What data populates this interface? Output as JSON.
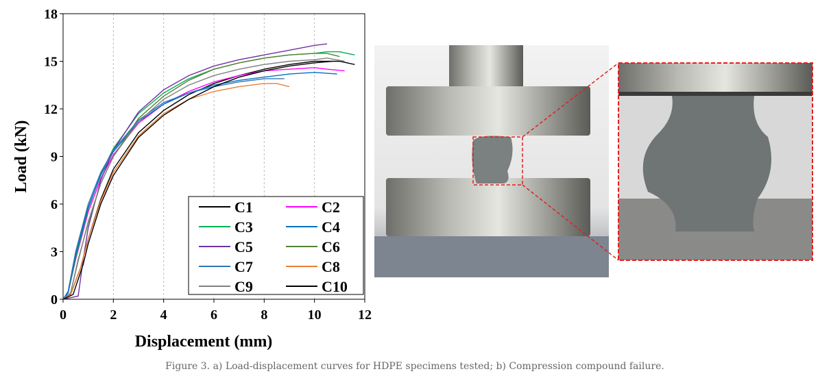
{
  "chart_data": {
    "type": "line",
    "xlabel": "Displacement (mm)",
    "ylabel": "Load (kN)",
    "xlim": [
      0,
      12
    ],
    "xticks": [
      0,
      2,
      4,
      6,
      8,
      10,
      12
    ],
    "ylim": [
      0,
      18
    ],
    "yticks": [
      0,
      3,
      6,
      9,
      12,
      15,
      18
    ],
    "grid": true,
    "legend": "lower right",
    "series": [
      {
        "name": "C1",
        "color": "#000000",
        "x": [
          0,
          0.3,
          0.7,
          1,
          1.5,
          2,
          3,
          4,
          5,
          6,
          7,
          8,
          9,
          10,
          11,
          11.6
        ],
        "values": [
          0,
          0.3,
          2,
          3.8,
          6.3,
          8.2,
          10.5,
          11.9,
          12.9,
          13.6,
          14.1,
          14.5,
          14.8,
          15.0,
          15.0,
          14.8
        ]
      },
      {
        "name": "C2",
        "color": "#ff00ff",
        "x": [
          0,
          0.2,
          0.5,
          1,
          1.5,
          2,
          3,
          4,
          5,
          6,
          7,
          8,
          9,
          10,
          10.5,
          11.2
        ],
        "values": [
          0,
          0.4,
          2.5,
          5.5,
          7.6,
          9.1,
          11.1,
          12.3,
          13.1,
          13.7,
          14.1,
          14.4,
          14.5,
          14.6,
          14.5,
          14.4
        ]
      },
      {
        "name": "C3",
        "color": "#00b050",
        "x": [
          0,
          0.2,
          0.5,
          1,
          1.5,
          2,
          3,
          4,
          5,
          6,
          7,
          8,
          9,
          10,
          10.5,
          11,
          11.6
        ],
        "values": [
          0,
          0.4,
          2.6,
          5.7,
          7.9,
          9.5,
          11.7,
          13.0,
          13.9,
          14.5,
          14.9,
          15.2,
          15.4,
          15.5,
          15.6,
          15.6,
          15.4
        ]
      },
      {
        "name": "C4",
        "color": "#0070c0",
        "x": [
          0,
          0.2,
          0.5,
          1,
          1.5,
          2,
          3,
          4,
          5,
          6,
          7,
          8,
          9,
          10,
          10.9
        ],
        "values": [
          0,
          0.4,
          2.8,
          5.8,
          7.8,
          9.3,
          11.2,
          12.3,
          13.0,
          13.5,
          13.8,
          14.0,
          14.2,
          14.3,
          14.2
        ]
      },
      {
        "name": "C5",
        "color": "#7030a0",
        "x": [
          0,
          0.6,
          0.8,
          1,
          1.5,
          2,
          3,
          4,
          5,
          6,
          7,
          8,
          9,
          10,
          10.5
        ],
        "values": [
          0,
          0.2,
          2.5,
          4.5,
          7.5,
          9.4,
          11.8,
          13.2,
          14.1,
          14.7,
          15.1,
          15.4,
          15.7,
          16.0,
          16.1
        ]
      },
      {
        "name": "C6",
        "color": "#548235",
        "x": [
          0,
          0.3,
          0.6,
          1,
          1.5,
          2,
          3,
          4,
          5,
          6,
          7,
          8,
          9,
          10,
          10.5,
          11
        ],
        "values": [
          0,
          0.4,
          2.5,
          4.8,
          7.3,
          9.0,
          11.4,
          12.8,
          13.8,
          14.5,
          14.9,
          15.2,
          15.4,
          15.5,
          15.5,
          15.3
        ]
      },
      {
        "name": "C7",
        "color": "#2e75b6",
        "x": [
          0,
          0.2,
          0.5,
          1,
          1.5,
          2,
          3,
          4,
          5,
          6,
          7,
          8,
          8.8
        ],
        "values": [
          0,
          0.5,
          3,
          6,
          8,
          9.4,
          11.3,
          12.4,
          13.0,
          13.4,
          13.7,
          13.9,
          13.9
        ]
      },
      {
        "name": "C8",
        "color": "#ed7d31",
        "x": [
          0,
          0.3,
          0.7,
          1,
          1.5,
          2,
          3,
          4,
          5,
          6,
          7,
          8,
          8.5,
          9
        ],
        "values": [
          0,
          0.3,
          2,
          3.8,
          6.2,
          8.0,
          10.3,
          11.7,
          12.6,
          13.1,
          13.4,
          13.6,
          13.6,
          13.4
        ]
      },
      {
        "name": "C9",
        "color": "#808080",
        "x": [
          0,
          0.3,
          0.6,
          1,
          1.5,
          2,
          3,
          4,
          5,
          6,
          7,
          8,
          9,
          10,
          10.5,
          11.2
        ],
        "values": [
          0,
          0.4,
          2.4,
          4.9,
          7.3,
          9.0,
          11.2,
          12.6,
          13.5,
          14.1,
          14.5,
          14.8,
          15.0,
          15.1,
          15.2,
          15.0
        ]
      },
      {
        "name": "C10",
        "color": "#000000",
        "x": [
          0,
          0.4,
          0.8,
          1,
          1.5,
          2,
          3,
          4,
          5,
          6,
          7,
          8,
          9,
          10,
          10.7
        ],
        "values": [
          0,
          0.3,
          2.2,
          3.5,
          6.0,
          7.8,
          10.2,
          11.6,
          12.6,
          13.4,
          14.0,
          14.4,
          14.7,
          14.9,
          15.0
        ]
      }
    ]
  },
  "caption": "Figure 3. a) Load-displacement curves for HDPE specimens tested; b) Compression compound failure."
}
